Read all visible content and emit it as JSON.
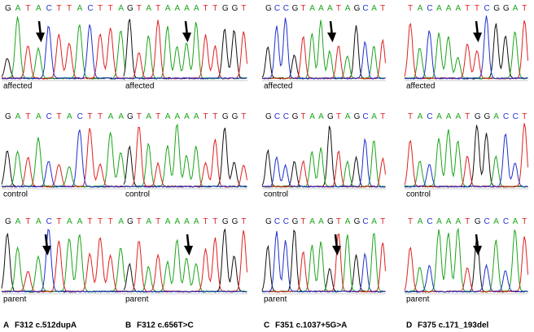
{
  "panels": [
    {
      "rows": [
        {
          "sequence": "GATACTTACTTA",
          "label": "affected"
        },
        {
          "sequence": "GATACTACTTAA",
          "label": "control"
        },
        {
          "sequence": "GATACTAATTTA",
          "label": "parent"
        }
      ],
      "caption": {
        "letter": "A",
        "text": "F312 c.512dupA"
      }
    },
    {
      "rows": [
        {
          "sequence": "GTATAAAATTGGT",
          "label": "affected"
        },
        {
          "sequence": "GTATAAAATTGGT",
          "label": "control"
        },
        {
          "sequence": "GTATAAAATTGGT",
          "label": "parent"
        }
      ],
      "caption": {
        "letter": "B",
        "text": "F312 c.656T>C"
      }
    },
    {
      "rows": [
        {
          "sequence": "GCCGTAAATAGCAT",
          "label": "affected"
        },
        {
          "sequence": "GCCGTAAGTAGCAT",
          "label": "control"
        },
        {
          "sequence": "GCCGTAAGTAGCAT",
          "label": "parent"
        }
      ],
      "caption": {
        "letter": "C",
        "text": "F351 c.1037+5G>A"
      }
    },
    {
      "rows": [
        {
          "sequence": "TACAAATTCGGAT",
          "label": "affected"
        },
        {
          "sequence": "TACAAATGGACCT",
          "label": "control"
        },
        {
          "sequence": "TACAAATGCACAT",
          "label": "parent"
        }
      ],
      "caption": {
        "letter": "D",
        "text": "F375 c.171_193del"
      }
    }
  ]
}
